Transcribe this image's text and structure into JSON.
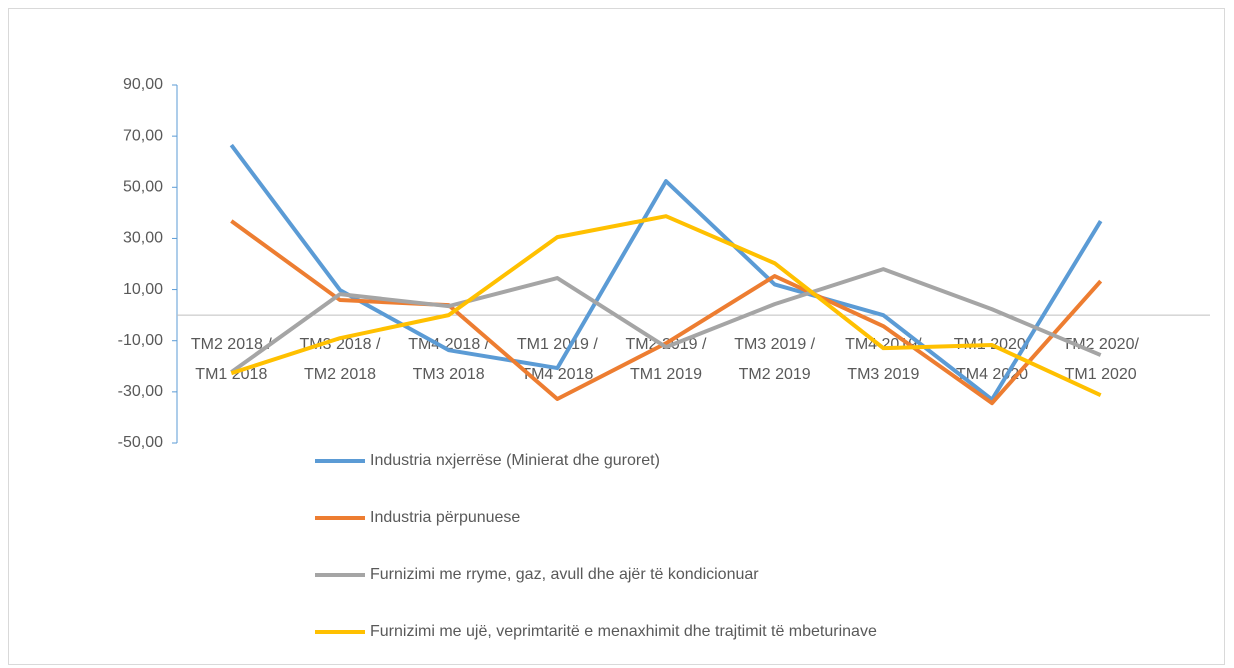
{
  "chart_data": {
    "type": "line",
    "categories": [
      [
        "TM2 2018 /",
        "TM1 2018"
      ],
      [
        "TM3 2018 /",
        "TM2 2018"
      ],
      [
        "TM4 2018 /",
        "TM3 2018"
      ],
      [
        "TM1 2019 /",
        "TM4 2018"
      ],
      [
        "TM2 2019 /",
        "TM1 2019"
      ],
      [
        "TM3 2019 /",
        "TM2 2019"
      ],
      [
        "TM4 2019/",
        "TM3 2019"
      ],
      [
        "TM1 2020/",
        "TM4 2020"
      ],
      [
        "TM2 2020/",
        "TM1 2020"
      ]
    ],
    "series": [
      {
        "name": "Industria nxjerrëse (Minierat dhe guroret)",
        "color": "#5b9bd5",
        "values": [
          66.5,
          9.8,
          -13.7,
          -20.7,
          52.4,
          12,
          0,
          -33,
          36.8
        ]
      },
      {
        "name": "Industria përpunuese",
        "color": "#ed7d31",
        "values": [
          36.8,
          5.9,
          3.9,
          -32.8,
          -11,
          15.3,
          -4.3,
          -34.4,
          13.3
        ]
      },
      {
        "name": "Furnizimi me rryme, gaz, avull dhe ajër të kondicionuar",
        "color": "#a5a5a5",
        "values": [
          -22.3,
          8.2,
          3.5,
          14.5,
          -12.5,
          4.3,
          18,
          2.3,
          -15.6
        ]
      },
      {
        "name": "Furnizimi me ujë, veprimtaritë e menaxhimit dhe trajtimit të mbeturinave",
        "color": "#ffc000",
        "values": [
          -22.7,
          -9,
          0,
          30.5,
          38.7,
          20.3,
          -12.9,
          -11.7,
          -31.3
        ]
      }
    ],
    "ylim": [
      -50,
      90
    ],
    "yticks": [
      {
        "value": -50,
        "label": "-50,00"
      },
      {
        "value": -30,
        "label": "-30,00"
      },
      {
        "value": -10,
        "label": "-10,00"
      },
      {
        "value": 10,
        "label": "10,00"
      },
      {
        "value": 30,
        "label": "30,00"
      },
      {
        "value": 50,
        "label": "50,00"
      },
      {
        "value": 70,
        "label": "70,00"
      },
      {
        "value": 90,
        "label": "90,00"
      }
    ],
    "grid": false,
    "legend": "bottom"
  }
}
